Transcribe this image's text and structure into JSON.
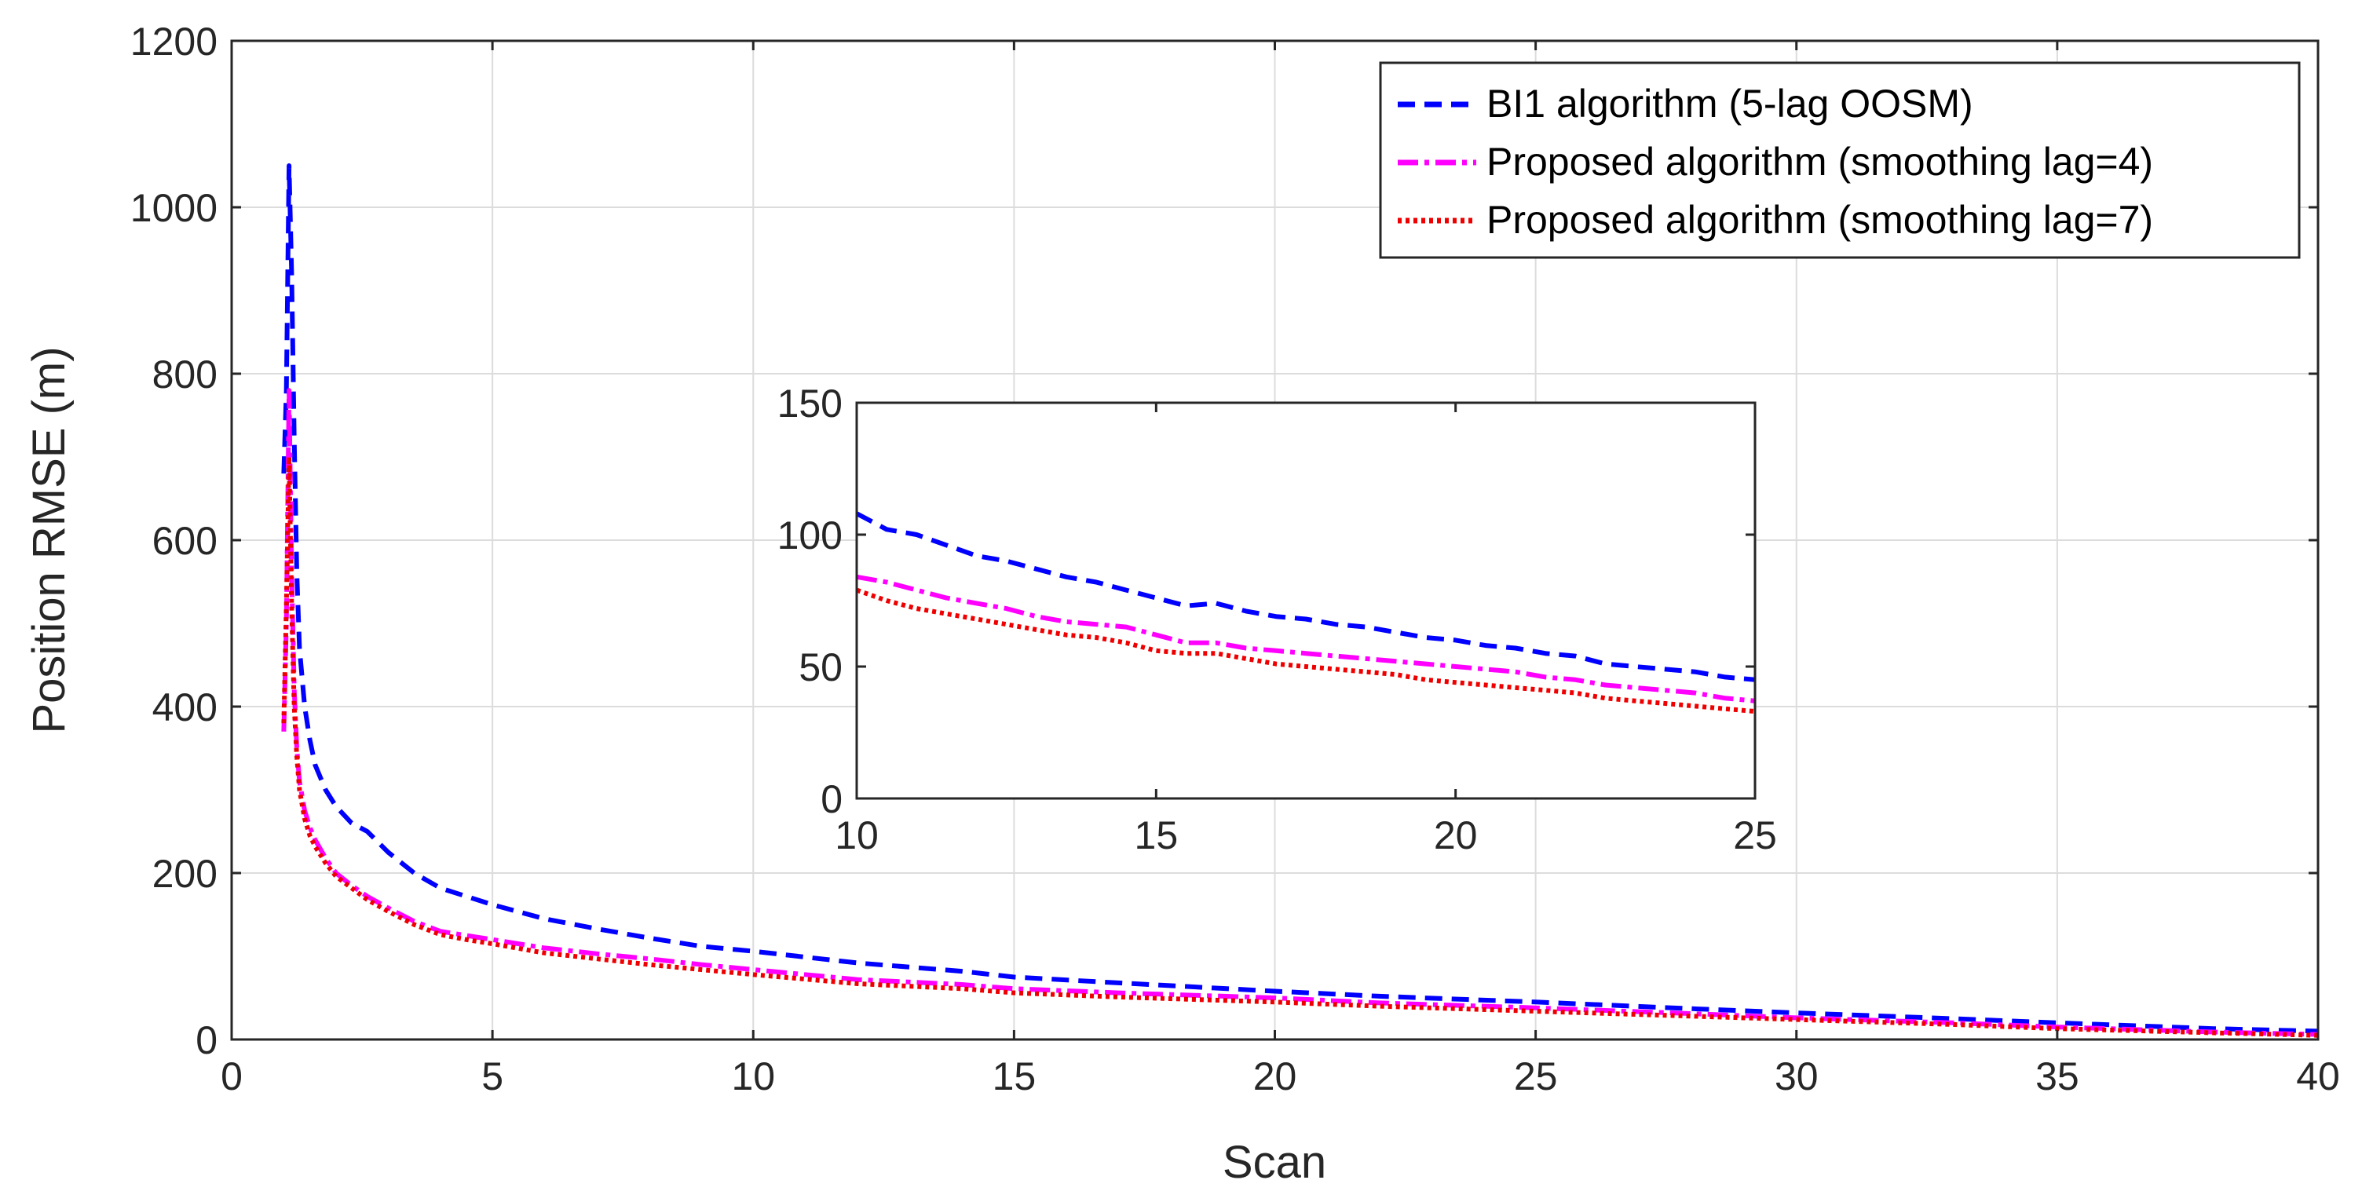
{
  "chart_data": [
    {
      "type": "line",
      "role": "main",
      "title": "",
      "xlabel": "Scan",
      "ylabel": "Position RMSE (m)",
      "xlim": [
        0,
        40
      ],
      "ylim": [
        0,
        1200
      ],
      "xticks": [
        "0",
        "5",
        "10",
        "15",
        "20",
        "25",
        "30",
        "35",
        "40"
      ],
      "yticks": [
        "0",
        "200",
        "400",
        "600",
        "800",
        "1000",
        "1200"
      ],
      "grid": true,
      "legend_position": "top-right",
      "series": [
        {
          "name": "BI1 algorithm (5-lag OOSM)",
          "color": "#0000ff",
          "style": "dashed",
          "x": [
            1.0,
            1.05,
            1.1,
            1.15,
            1.2,
            1.25,
            1.3,
            1.4,
            1.5,
            1.6,
            1.8,
            2.0,
            2.3,
            2.6,
            3.0,
            3.5,
            4.0,
            4.5,
            5.0,
            6.0,
            7.0,
            8.0,
            9.0,
            10.0,
            12.0,
            14.0,
            15.0,
            17.0,
            20.0,
            22.0,
            25.0,
            28.0,
            30.0,
            33.0,
            35.0,
            38.0,
            40.0
          ],
          "y": [
            680,
            780,
            1050,
            920,
            720,
            560,
            470,
            400,
            360,
            330,
            300,
            280,
            260,
            250,
            225,
            200,
            182,
            172,
            162,
            145,
            133,
            122,
            112,
            106,
            92,
            82,
            75,
            68,
            58,
            52,
            45,
            37,
            32,
            25,
            20,
            13,
            10
          ]
        },
        {
          "name": "Proposed algorithm (smoothing lag=4)",
          "color": "#ff00ff",
          "style": "dashdot",
          "x": [
            1.0,
            1.05,
            1.1,
            1.15,
            1.2,
            1.25,
            1.3,
            1.4,
            1.5,
            1.6,
            1.8,
            2.0,
            2.3,
            2.6,
            3.0,
            3.5,
            4.0,
            4.5,
            5.0,
            6.0,
            7.0,
            8.0,
            9.0,
            10.0,
            12.0,
            14.0,
            15.0,
            17.0,
            20.0,
            22.0,
            25.0,
            28.0,
            30.0,
            33.0,
            35.0,
            38.0,
            40.0
          ],
          "y": [
            370,
            500,
            780,
            560,
            420,
            350,
            310,
            275,
            255,
            240,
            218,
            200,
            185,
            172,
            158,
            142,
            130,
            125,
            120,
            110,
            103,
            97,
            90,
            84,
            72,
            66,
            61,
            56,
            50,
            44,
            38,
            31,
            26,
            20,
            15,
            9,
            6
          ]
        },
        {
          "name": "Proposed algorithm (smoothing lag=7)",
          "color": "#ee0000",
          "style": "dotted",
          "x": [
            1.0,
            1.05,
            1.1,
            1.15,
            1.2,
            1.25,
            1.3,
            1.4,
            1.5,
            1.6,
            1.8,
            2.0,
            2.3,
            2.6,
            3.0,
            3.5,
            4.0,
            4.5,
            5.0,
            6.0,
            7.0,
            8.0,
            9.0,
            10.0,
            12.0,
            14.0,
            15.0,
            17.0,
            20.0,
            22.0,
            25.0,
            28.0,
            30.0,
            33.0,
            35.0,
            38.0,
            40.0
          ],
          "y": [
            380,
            520,
            700,
            520,
            400,
            340,
            300,
            265,
            245,
            232,
            212,
            196,
            182,
            168,
            154,
            138,
            126,
            120,
            115,
            104,
            97,
            90,
            84,
            78,
            67,
            61,
            56,
            51,
            45,
            40,
            34,
            28,
            24,
            18,
            13,
            8,
            5
          ]
        }
      ]
    },
    {
      "type": "line",
      "role": "inset",
      "title": "",
      "xlabel": "",
      "ylabel": "",
      "xlim": [
        10,
        25
      ],
      "ylim": [
        0,
        150
      ],
      "xticks": [
        "10",
        "15",
        "20",
        "25"
      ],
      "yticks": [
        "0",
        "50",
        "100",
        "150"
      ],
      "grid": false,
      "series": [
        {
          "name": "BI1 algorithm (5-lag OOSM)",
          "color": "#0000ff",
          "style": "dashed",
          "x": [
            10,
            10.5,
            11,
            11.5,
            12,
            12.5,
            13,
            13.5,
            14,
            14.5,
            15,
            15.5,
            16,
            16.5,
            17,
            17.5,
            18,
            18.5,
            19,
            19.5,
            20,
            20.5,
            21,
            21.5,
            22,
            22.5,
            23,
            23.5,
            24,
            24.5,
            25
          ],
          "y": [
            108,
            102,
            100,
            96,
            92,
            90,
            87,
            84,
            82,
            79,
            76,
            73,
            74,
            71,
            69,
            68,
            66,
            65,
            63,
            61,
            60,
            58,
            57,
            55,
            54,
            51,
            50,
            49,
            48,
            46,
            45
          ]
        },
        {
          "name": "Proposed algorithm (smoothing lag=4)",
          "color": "#ff00ff",
          "style": "dashdot",
          "x": [
            10,
            10.5,
            11,
            11.5,
            12,
            12.5,
            13,
            13.5,
            14,
            14.5,
            15,
            15.5,
            16,
            16.5,
            17,
            17.5,
            18,
            18.5,
            19,
            19.5,
            20,
            20.5,
            21,
            21.5,
            22,
            22.5,
            23,
            23.5,
            24,
            24.5,
            25
          ],
          "y": [
            84,
            82,
            79,
            76,
            74,
            72,
            69,
            67,
            66,
            65,
            62,
            59,
            59,
            57,
            56,
            55,
            54,
            53,
            52,
            51,
            50,
            49,
            48,
            46,
            45,
            43,
            42,
            41,
            40,
            38,
            37
          ]
        },
        {
          "name": "Proposed algorithm (smoothing lag=7)",
          "color": "#ee0000",
          "style": "dotted",
          "x": [
            10,
            10.5,
            11,
            11.5,
            12,
            12.5,
            13,
            13.5,
            14,
            14.5,
            15,
            15.5,
            16,
            16.5,
            17,
            17.5,
            18,
            18.5,
            19,
            19.5,
            20,
            20.5,
            21,
            21.5,
            22,
            22.5,
            23,
            23.5,
            24,
            24.5,
            25
          ],
          "y": [
            79,
            75,
            72,
            70,
            68,
            66,
            64,
            62,
            61,
            59,
            56,
            55,
            55,
            53,
            51,
            50,
            49,
            48,
            47,
            45,
            44,
            43,
            42,
            41,
            40,
            38,
            37,
            36,
            35,
            34,
            33
          ]
        }
      ]
    }
  ]
}
